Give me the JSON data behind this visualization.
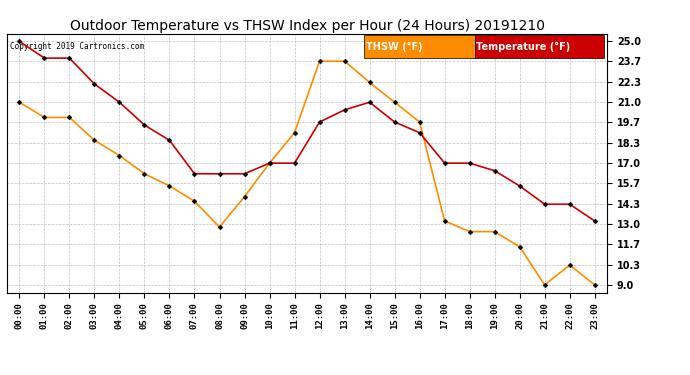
{
  "title": "Outdoor Temperature vs THSW Index per Hour (24 Hours) 20191210",
  "copyright": "Copyright 2019 Cartronics.com",
  "hours": [
    "00:00",
    "01:00",
    "02:00",
    "03:00",
    "04:00",
    "05:00",
    "06:00",
    "07:00",
    "08:00",
    "09:00",
    "10:00",
    "11:00",
    "12:00",
    "13:00",
    "14:00",
    "15:00",
    "16:00",
    "17:00",
    "18:00",
    "19:00",
    "20:00",
    "21:00",
    "22:00",
    "23:00"
  ],
  "temperature": [
    25.0,
    23.9,
    23.9,
    22.2,
    21.0,
    19.5,
    18.5,
    16.3,
    16.3,
    16.3,
    17.0,
    17.0,
    19.7,
    20.5,
    21.0,
    19.7,
    19.0,
    17.0,
    17.0,
    16.5,
    15.5,
    14.3,
    14.3,
    13.2
  ],
  "thsw": [
    21.0,
    20.0,
    20.0,
    18.5,
    17.5,
    16.3,
    15.5,
    14.5,
    12.8,
    14.8,
    17.0,
    19.0,
    23.7,
    23.7,
    22.3,
    21.0,
    19.7,
    13.2,
    12.5,
    12.5,
    11.5,
    9.0,
    10.3,
    9.0
  ],
  "temp_color": "#cc0000",
  "thsw_color": "#ff8c00",
  "ylim_min": 8.5,
  "ylim_max": 25.5,
  "yticks": [
    9.0,
    10.3,
    11.7,
    13.0,
    14.3,
    15.7,
    17.0,
    18.3,
    19.7,
    21.0,
    22.3,
    23.7,
    25.0
  ],
  "background_color": "#ffffff",
  "plot_bg_color": "#ffffff",
  "grid_color": "#bbbbbb",
  "marker": "D",
  "marker_size": 2.5,
  "line_width": 1.2,
  "title_fontsize": 10,
  "legend_thsw_label": "THSW (°F)",
  "legend_temp_label": "Temperature (°F)"
}
